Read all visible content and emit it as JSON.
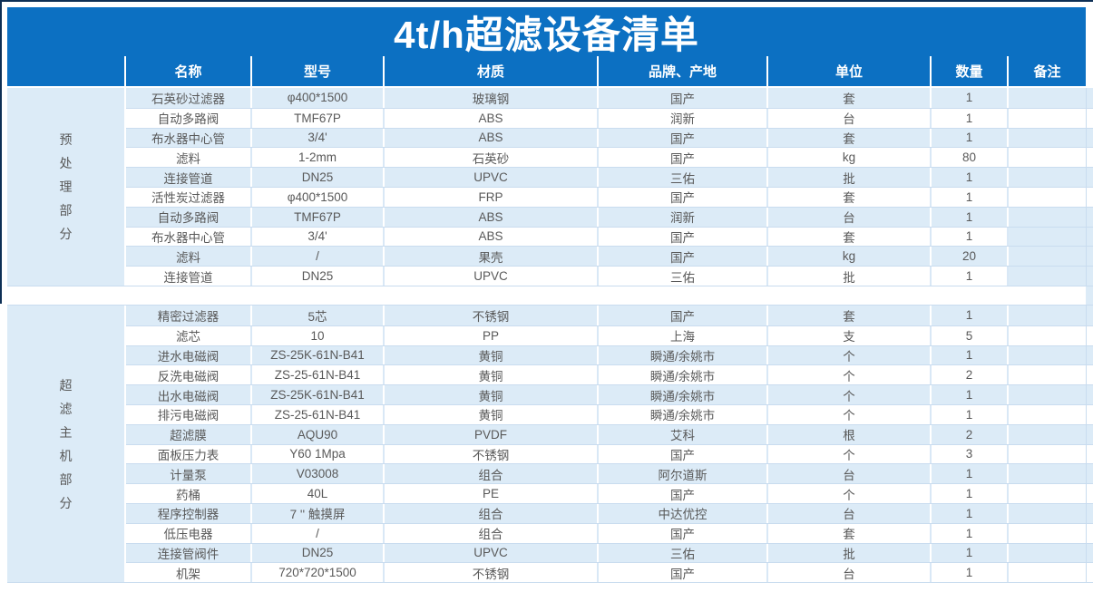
{
  "title": "4t/h超滤设备清单",
  "colors": {
    "header_blue": "#0c70c2",
    "row_light_blue": "#dcebf7",
    "row_white": "#ffffff",
    "grid_line": "#c9dcef",
    "body_text": "#595959",
    "header_text": "#ffffff",
    "window_edge": "#0d2f55"
  },
  "table": {
    "columns": [
      "名称",
      "型号",
      "材质",
      "品牌、产地",
      "单位",
      "数量",
      "备注"
    ],
    "sections": [
      {
        "group_label": "预处理部分",
        "rows": [
          {
            "name": "石英砂过滤器",
            "model": "φ400*1500",
            "material": "玻璃钢",
            "brand": "国产",
            "unit": "套",
            "qty": "1",
            "remark": ""
          },
          {
            "name": "自动多路阀",
            "model": "TMF67P",
            "material": "ABS",
            "brand": "润新",
            "unit": "台",
            "qty": "1",
            "remark": ""
          },
          {
            "name": "布水器中心管",
            "model": "3/4'",
            "material": "ABS",
            "brand": "国产",
            "unit": "套",
            "qty": "1",
            "remark": ""
          },
          {
            "name": "滤料",
            "model": "1-2mm",
            "material": "石英砂",
            "brand": "国产",
            "unit": "kg",
            "qty": "80",
            "remark": ""
          },
          {
            "name": "连接管道",
            "model": "DN25",
            "material": "UPVC",
            "brand": "三佑",
            "unit": "批",
            "qty": "1",
            "remark": ""
          },
          {
            "name": "活性炭过滤器",
            "model": "φ400*1500",
            "material": "FRP",
            "brand": "国产",
            "unit": "套",
            "qty": "1",
            "remark": ""
          },
          {
            "name": "自动多路阀",
            "model": "TMF67P",
            "material": "ABS",
            "brand": "润新",
            "unit": "台",
            "qty": "1",
            "remark": ""
          },
          {
            "name": "布水器中心管",
            "model": "3/4'",
            "material": "ABS",
            "brand": "国产",
            "unit": "套",
            "qty": "1",
            "remark": "",
            "remark_highlight": true
          },
          {
            "name": "滤料",
            "model": "/",
            "material": "果壳",
            "brand": "国产",
            "unit": "kg",
            "qty": "20",
            "remark": "",
            "remark_highlight": true
          },
          {
            "name": "连接管道",
            "model": "DN25",
            "material": "UPVC",
            "brand": "三佑",
            "unit": "批",
            "qty": "1",
            "remark": "",
            "remark_highlight": true
          }
        ]
      },
      {
        "group_label": "超滤主机部分",
        "rows": [
          {
            "name": "精密过滤器",
            "model": "5芯",
            "material": "不锈钢",
            "brand": "国产",
            "unit": "套",
            "qty": "1",
            "remark": ""
          },
          {
            "name": "滤芯",
            "model": "10",
            "material": "PP",
            "brand": "上海",
            "unit": "支",
            "qty": "5",
            "remark": ""
          },
          {
            "name": "进水电磁阀",
            "model": "ZS-25K-61N-B41",
            "material": "黄铜",
            "brand": "瞬通/余姚市",
            "unit": "个",
            "qty": "1",
            "remark": ""
          },
          {
            "name": "反洗电磁阀",
            "model": "ZS-25-61N-B41",
            "material": "黄铜",
            "brand": "瞬通/余姚市",
            "unit": "个",
            "qty": "2",
            "remark": ""
          },
          {
            "name": "出水电磁阀",
            "model": "ZS-25K-61N-B41",
            "material": "黄铜",
            "brand": "瞬通/余姚市",
            "unit": "个",
            "qty": "1",
            "remark": ""
          },
          {
            "name": "排污电磁阀",
            "model": "ZS-25-61N-B41",
            "material": "黄铜",
            "brand": "瞬通/余姚市",
            "unit": "个",
            "qty": "1",
            "remark": ""
          },
          {
            "name": "超滤膜",
            "model": "AQU90",
            "material": "PVDF",
            "brand": "艾科",
            "unit": "根",
            "qty": "2",
            "remark": ""
          },
          {
            "name": "面板压力表",
            "model": "Y60 1Mpa",
            "material": "不锈钢",
            "brand": "国产",
            "unit": "个",
            "qty": "3",
            "remark": ""
          },
          {
            "name": "计量泵",
            "model": "V03008",
            "material": "组合",
            "brand": "阿尔道斯",
            "unit": "台",
            "qty": "1",
            "remark": ""
          },
          {
            "name": "药桶",
            "model": "40L",
            "material": "PE",
            "brand": "国产",
            "unit": "个",
            "qty": "1",
            "remark": ""
          },
          {
            "name": "程序控制器",
            "model": "7 '' 触摸屏",
            "material": "组合",
            "brand": "中达优控",
            "unit": "台",
            "qty": "1",
            "remark": ""
          },
          {
            "name": "低压电器",
            "model": "/",
            "material": "组合",
            "brand": "国产",
            "unit": "套",
            "qty": "1",
            "remark": ""
          },
          {
            "name": "连接管阀件",
            "model": "DN25",
            "material": "UPVC",
            "brand": "三佑",
            "unit": "批",
            "qty": "1",
            "remark": ""
          },
          {
            "name": "机架",
            "model": "720*720*1500",
            "material": "不锈钢",
            "brand": "国产",
            "unit": "台",
            "qty": "1",
            "remark": ""
          }
        ]
      }
    ]
  }
}
